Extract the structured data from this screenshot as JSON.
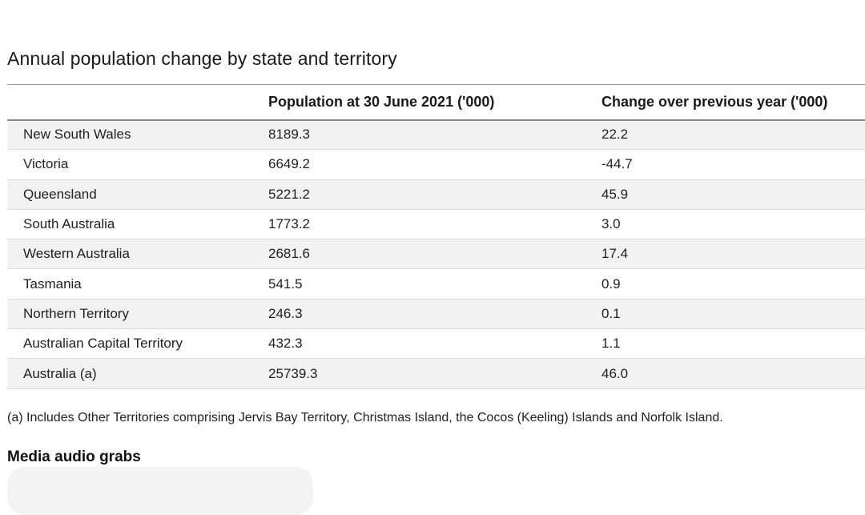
{
  "title": "Annual population change by state and territory",
  "table": {
    "headers": [
      "",
      "Population at 30 June 2021 ('000)",
      "Change over previous year ('000)"
    ],
    "rows": [
      {
        "state": "New South Wales",
        "population": "8189.3",
        "change": "22.2"
      },
      {
        "state": "Victoria",
        "population": "6649.2",
        "change": "-44.7"
      },
      {
        "state": "Queensland",
        "population": "5221.2",
        "change": "45.9"
      },
      {
        "state": "South Australia",
        "population": "1773.2",
        "change": "3.0"
      },
      {
        "state": "Western Australia",
        "population": "2681.6",
        "change": "17.4"
      },
      {
        "state": "Tasmania",
        "population": "541.5",
        "change": "0.9"
      },
      {
        "state": "Northern Territory",
        "population": "246.3",
        "change": "0.1"
      },
      {
        "state": "Australian Capital Territory",
        "population": "432.3",
        "change": "1.1"
      },
      {
        "state": "Australia (a)",
        "population": "25739.3",
        "change": "46.0"
      }
    ]
  },
  "footnote": "(a) Includes Other Territories comprising Jervis Bay Territory, Christmas Island, the Cocos (Keeling) Islands and Norfolk Island.",
  "media_heading": "Media audio grabs",
  "colors": {
    "row_shade": "#f2f2f2",
    "text": "#1f1f1f",
    "rule": "#8a8a8a"
  }
}
